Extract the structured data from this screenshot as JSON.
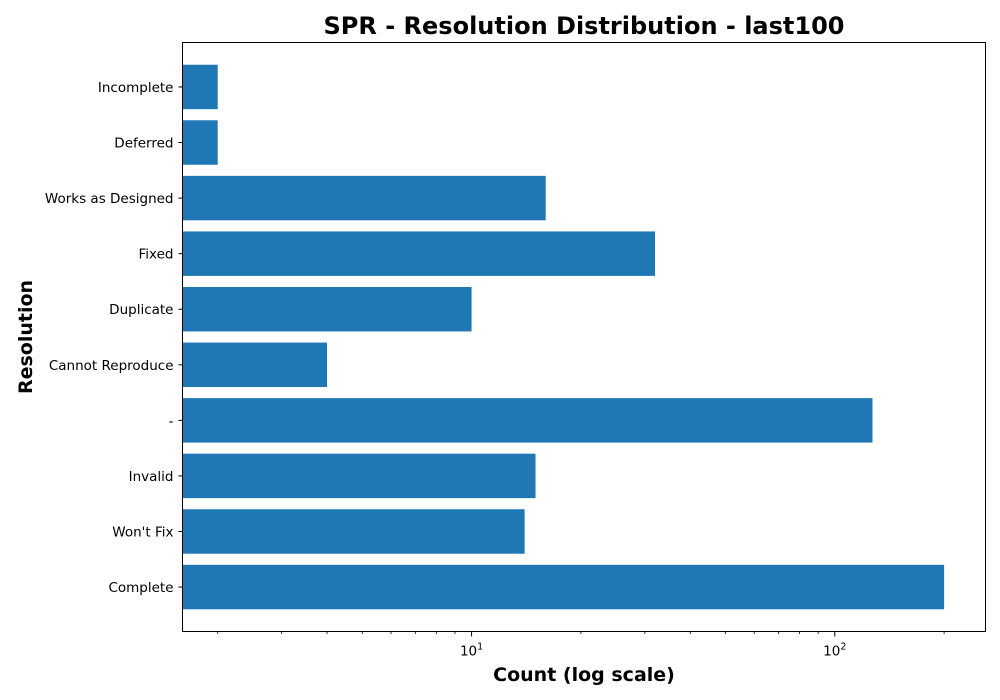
{
  "chart_data": {
    "type": "bar",
    "orientation": "horizontal",
    "title": "SPR - Resolution Distribution - last100",
    "xlabel": "Count (log scale)",
    "ylabel": "Resolution",
    "x_scale": "log",
    "xlim": [
      1.6,
      260
    ],
    "categories": [
      "Complete",
      "Won't Fix",
      "Invalid",
      "-",
      "Cannot Reproduce",
      "Duplicate",
      "Fixed",
      "Works as Designed",
      "Deferred",
      "Incomplete"
    ],
    "values": [
      200,
      14,
      15,
      127,
      4,
      10,
      32,
      16,
      2,
      2
    ],
    "x_ticks": [
      {
        "value": 10,
        "base": "10",
        "exp": "1"
      },
      {
        "value": 100,
        "base": "10",
        "exp": "2"
      }
    ],
    "color": "#1f77b4",
    "grid": false
  }
}
